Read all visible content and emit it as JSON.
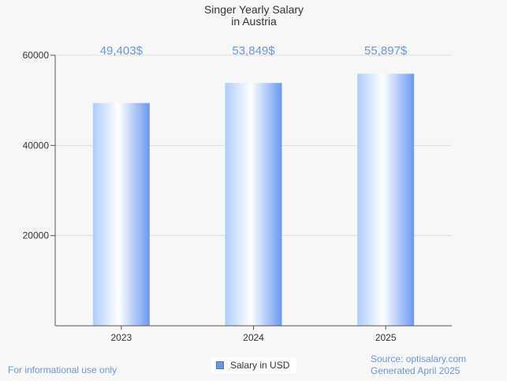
{
  "chart_data": {
    "type": "bar",
    "title": "Singer Yearly Salary",
    "subtitle": "in Austria",
    "categories": [
      "2023",
      "2024",
      "2025"
    ],
    "values": [
      49403,
      53849,
      55897
    ],
    "data_labels": [
      "49,403$",
      "53,849$",
      "55,897$"
    ],
    "series": [
      {
        "name": "Salary in USD",
        "values": [
          49403,
          53849,
          55897
        ]
      }
    ],
    "ylim": [
      0,
      60000
    ],
    "yticks": [
      "20000",
      "40000",
      "60000"
    ],
    "ytick_values": [
      20000,
      40000,
      60000
    ],
    "xlabel": "",
    "ylabel": "",
    "grid": true,
    "legend": "bottom-center",
    "colors": {
      "bar_light": "#ffffff",
      "bar_mid": "#c9e0fc",
      "bar_dark": "#6b98f0",
      "label": "#6b98d6"
    }
  },
  "footer": {
    "disclaimer": "For informational use only",
    "source": "Source: optisalary.com",
    "generated": "Generated April 2025"
  }
}
